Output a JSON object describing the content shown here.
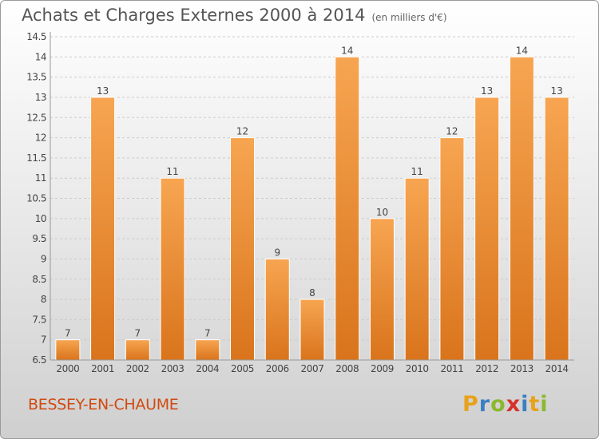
{
  "header": {
    "title": "Achats et Charges Externes 2000 à 2014",
    "subtitle": "(en milliers d'€)"
  },
  "footer": {
    "commune": "BESSEY-EN-CHAUME",
    "logo": "Proxiti",
    "logo_colors": [
      "#e8a21a",
      "#3a7fc1",
      "#8bb82e",
      "#d6302c",
      "#3a7fc1",
      "#e8a21a",
      "#8bb82e"
    ]
  },
  "colors": {
    "bar_light": "#f7a551",
    "bar_dark": "#d9741c",
    "grid": "#cccccc",
    "axis_text": "#444444"
  },
  "chart_data": {
    "type": "bar",
    "title": "Achats et Charges Externes 2000 à 2014",
    "subtitle": "(en milliers d'€)",
    "categories": [
      "2000",
      "2001",
      "2002",
      "2003",
      "2004",
      "2005",
      "2006",
      "2007",
      "2008",
      "2009",
      "2010",
      "2011",
      "2012",
      "2013",
      "2014"
    ],
    "values": [
      7,
      13,
      7,
      11,
      7,
      12,
      9,
      8,
      14,
      10,
      11,
      12,
      13,
      14,
      13
    ],
    "ylim": [
      6.5,
      14.5
    ],
    "yticks": [
      "6.5",
      "7",
      "7.5",
      "8",
      "8.5",
      "9",
      "9.5",
      "10",
      "10.5",
      "11",
      "11.5",
      "12",
      "12.5",
      "13",
      "13.5",
      "14",
      "14.5"
    ],
    "grid": true,
    "legend": "none"
  }
}
